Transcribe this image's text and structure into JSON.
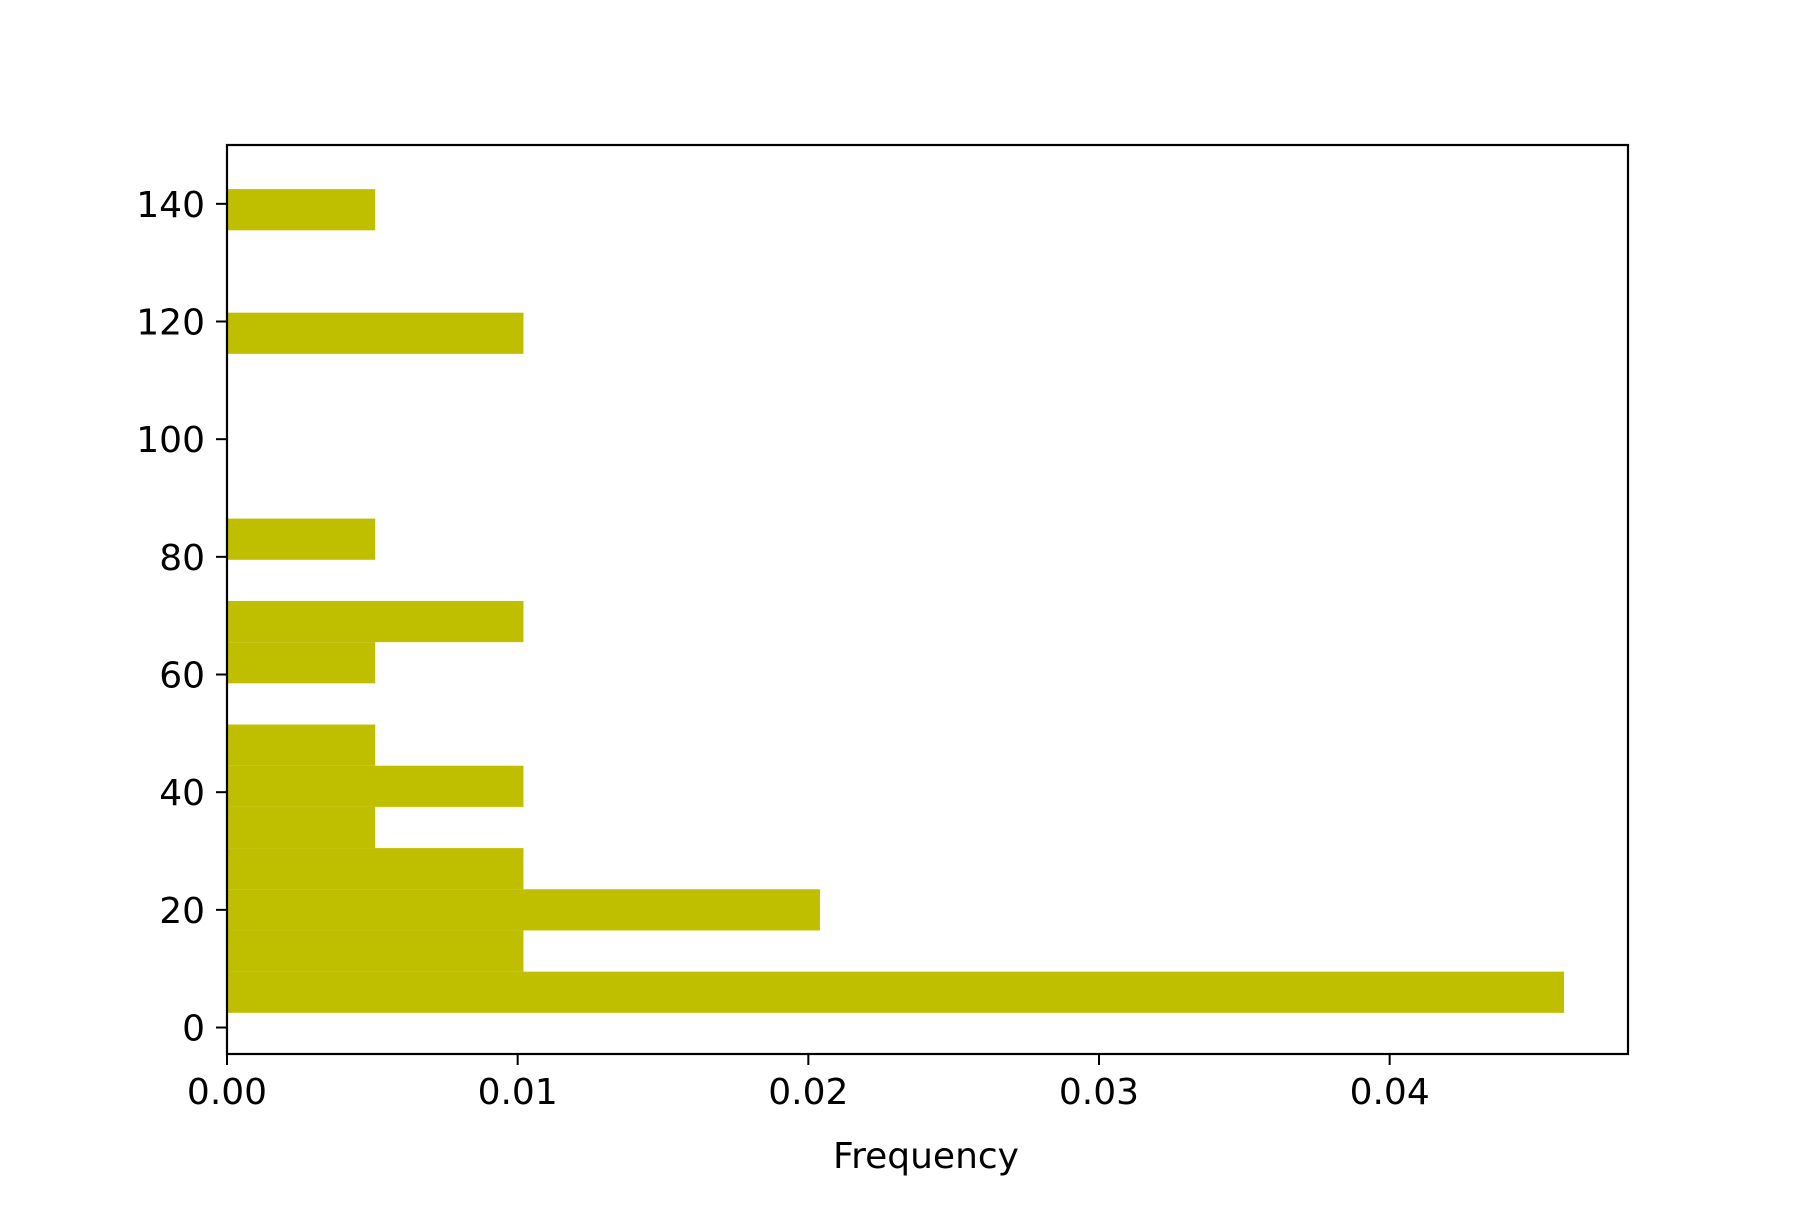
{
  "chart_data": {
    "type": "bar",
    "orientation": "horizontal",
    "xlabel": "Frequency",
    "ylabel": "",
    "xlim": [
      0,
      0.0482
    ],
    "ylim": [
      -4.5,
      150
    ],
    "xticks": [
      "0.00",
      "0.01",
      "0.02",
      "0.03",
      "0.04"
    ],
    "yticks": [
      "0",
      "20",
      "40",
      "60",
      "80",
      "100",
      "120",
      "140"
    ],
    "bin_width": 7,
    "bins": [
      {
        "start": 2.5,
        "end": 9.5,
        "value": 0.046
      },
      {
        "start": 9.5,
        "end": 16.5,
        "value": 0.0102
      },
      {
        "start": 16.5,
        "end": 23.5,
        "value": 0.0204
      },
      {
        "start": 23.5,
        "end": 30.5,
        "value": 0.0102
      },
      {
        "start": 30.5,
        "end": 37.5,
        "value": 0.0051
      },
      {
        "start": 37.5,
        "end": 44.5,
        "value": 0.0102
      },
      {
        "start": 44.5,
        "end": 51.5,
        "value": 0.0051
      },
      {
        "start": 58.5,
        "end": 65.5,
        "value": 0.0051
      },
      {
        "start": 65.5,
        "end": 72.5,
        "value": 0.0102
      },
      {
        "start": 79.5,
        "end": 86.5,
        "value": 0.0051
      },
      {
        "start": 114.5,
        "end": 121.5,
        "value": 0.0102
      },
      {
        "start": 135.5,
        "end": 142.5,
        "value": 0.0051
      }
    ],
    "bar_color": "#bfbf00",
    "axis_color": "#000000",
    "grid": false,
    "legend": "none"
  }
}
